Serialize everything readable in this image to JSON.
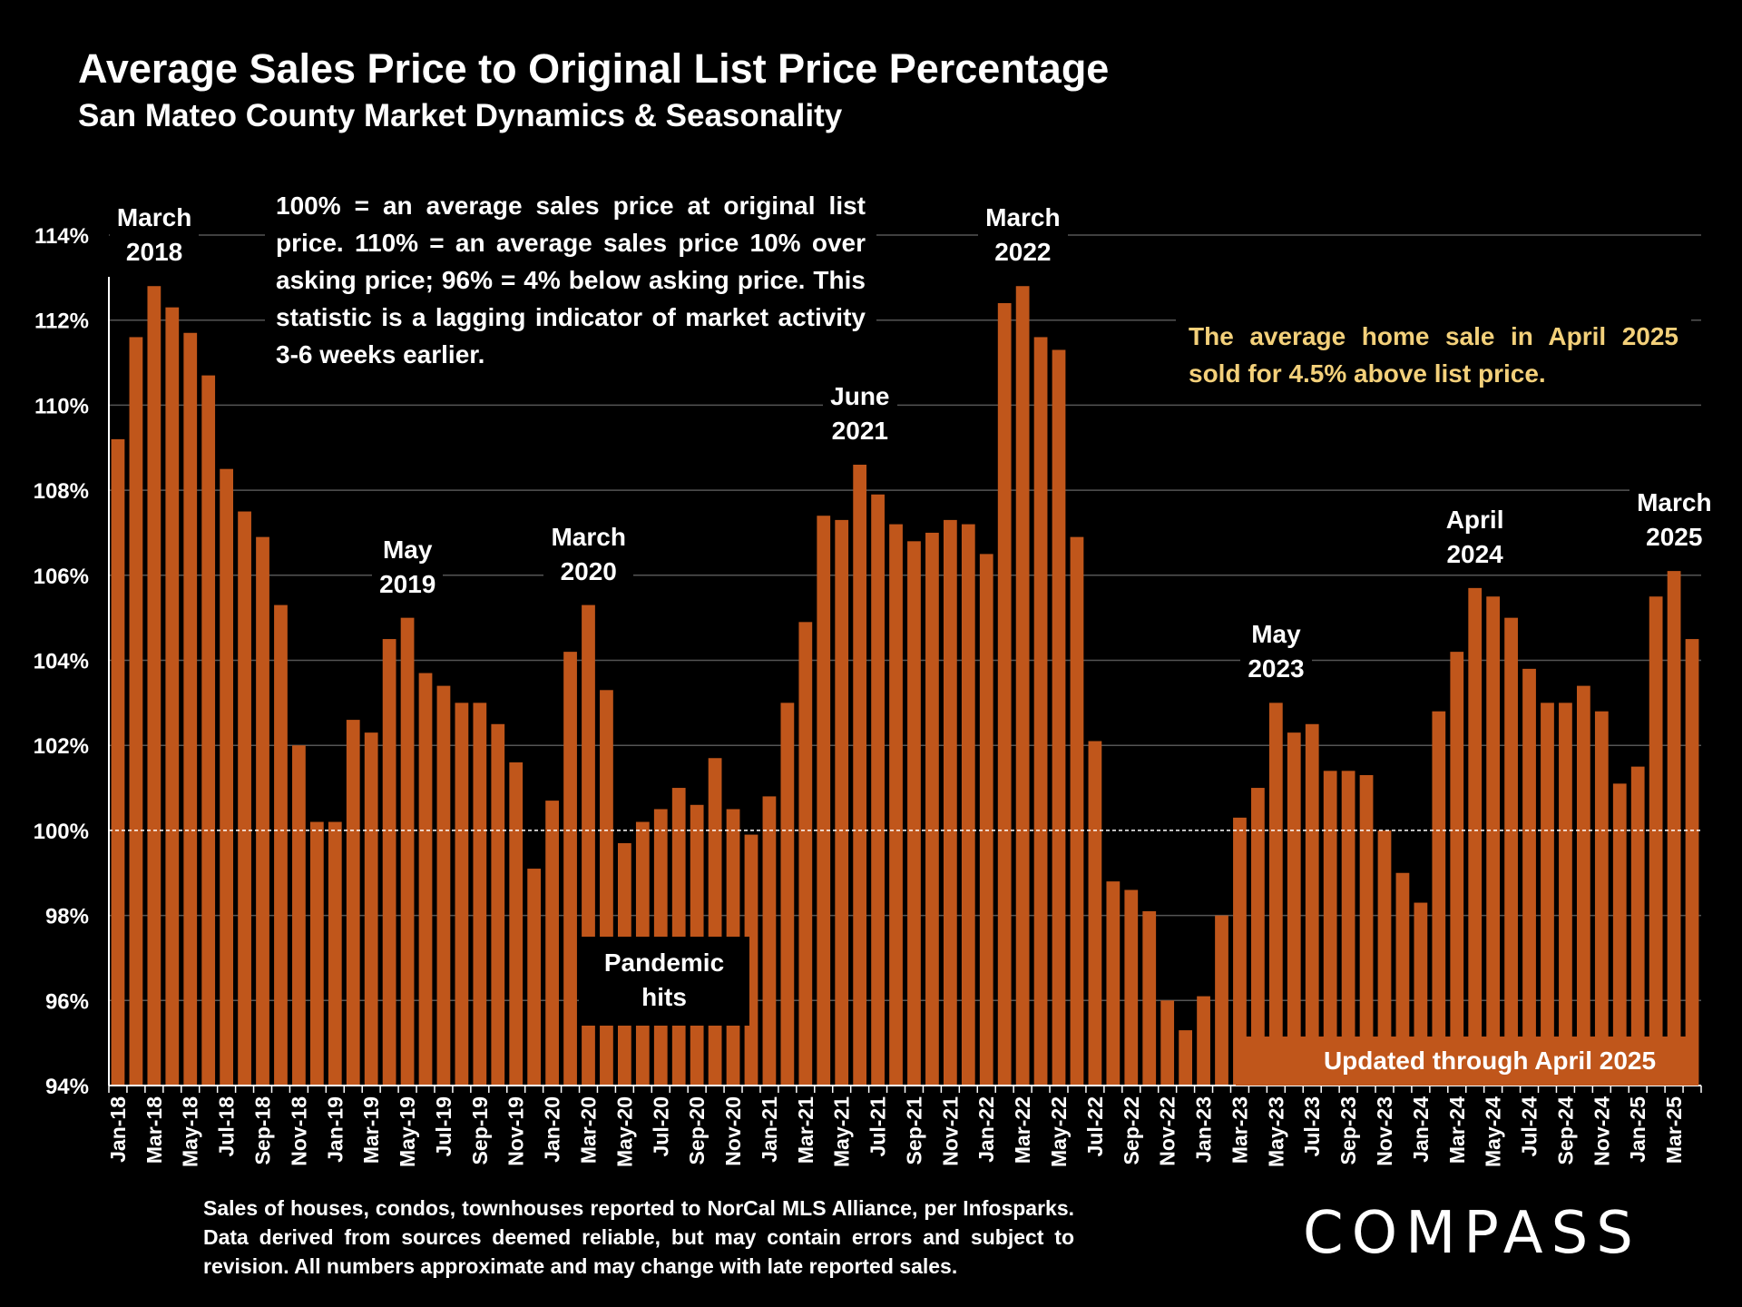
{
  "colors": {
    "bar": "#c0561b",
    "background": "#000000",
    "grid": "#555555",
    "highlight_text": "#f3d07a"
  },
  "header": {
    "title": "Average Sales Price to Original List Price Percentage",
    "subtitle": "San Mateo County Market Dynamics & Seasonality"
  },
  "notes": {
    "explanation": "100% = an average sales price at original list price. 110% = an average sales price 10% over asking price; 96% = 4% below asking price. This statistic is a lagging indicator of market activity 3-6 weeks earlier.",
    "highlight": "The average home sale in April 2025 sold for 4.5% above list price.",
    "pandemic": "Pandemic\nhits",
    "updated": "Updated through April 2025"
  },
  "annotations": [
    {
      "text": "March\n2018",
      "month_index": 2
    },
    {
      "text": "May\n2019",
      "month_index": 16
    },
    {
      "text": "March\n2020",
      "month_index": 26
    },
    {
      "text": "June\n2021",
      "month_index": 41
    },
    {
      "text": "March\n2022",
      "month_index": 50
    },
    {
      "text": "May\n2023",
      "month_index": 64
    },
    {
      "text": "April\n2024",
      "month_index": 75
    },
    {
      "text": "March\n2025",
      "month_index": 86
    }
  ],
  "footer": {
    "source": "Sales of houses, condos, townhouses reported to NorCal MLS Alliance, per Infosparks. Data derived from sources deemed reliable, but may contain errors and subject to revision. All numbers approximate and may change with late reported sales.",
    "logo": "COMPASS"
  },
  "chart_data": {
    "type": "bar",
    "ylim": [
      94,
      114
    ],
    "yticks": [
      "94%",
      "96%",
      "98%",
      "100%",
      "102%",
      "104%",
      "106%",
      "108%",
      "110%",
      "112%",
      "114%"
    ],
    "reference_line": 100,
    "grid": true,
    "x_tick_labels": [
      "Jan-18",
      "Mar-18",
      "May-18",
      "Jul-18",
      "Sep-18",
      "Nov-18",
      "Jan-19",
      "Mar-19",
      "May-19",
      "Jul-19",
      "Sep-19",
      "Nov-19",
      "Jan-20",
      "Mar-20",
      "May-20",
      "Jul-20",
      "Sep-20",
      "Nov-20",
      "Jan-21",
      "Mar-21",
      "May-21",
      "Jul-21",
      "Sep-21",
      "Nov-21",
      "Jan-22",
      "Mar-22",
      "May-22",
      "Jul-22",
      "Sep-22",
      "Nov-22",
      "Jan-23",
      "Mar-23",
      "May-23",
      "Jul-23",
      "Sep-23",
      "Nov-23",
      "Jan-24",
      "Mar-24",
      "May-24",
      "Jul-24",
      "Sep-24",
      "Nov-24",
      "Jan-25",
      "Mar-25"
    ],
    "values": [
      109.2,
      111.6,
      112.8,
      112.3,
      111.7,
      110.7,
      108.5,
      107.5,
      106.9,
      105.3,
      102.0,
      100.2,
      100.2,
      102.6,
      102.3,
      104.5,
      105.0,
      103.7,
      103.4,
      103.0,
      103.0,
      102.5,
      101.6,
      99.1,
      100.7,
      104.2,
      105.3,
      103.3,
      99.7,
      100.2,
      100.5,
      101.0,
      100.6,
      101.7,
      100.5,
      99.9,
      100.8,
      103.0,
      104.9,
      107.4,
      107.3,
      108.6,
      107.9,
      107.2,
      106.8,
      107.0,
      107.3,
      107.2,
      106.5,
      112.4,
      112.8,
      111.6,
      111.3,
      106.9,
      102.1,
      98.8,
      98.6,
      98.1,
      96.0,
      95.3,
      96.1,
      98.0,
      100.3,
      101.0,
      103.0,
      102.3,
      102.5,
      101.4,
      101.4,
      101.3,
      100.0,
      99.0,
      98.3,
      102.8,
      104.2,
      105.7,
      105.5,
      105.0,
      103.8,
      103.0,
      103.0,
      103.4,
      102.8,
      101.1,
      101.5,
      105.5,
      106.1,
      104.5
    ]
  }
}
